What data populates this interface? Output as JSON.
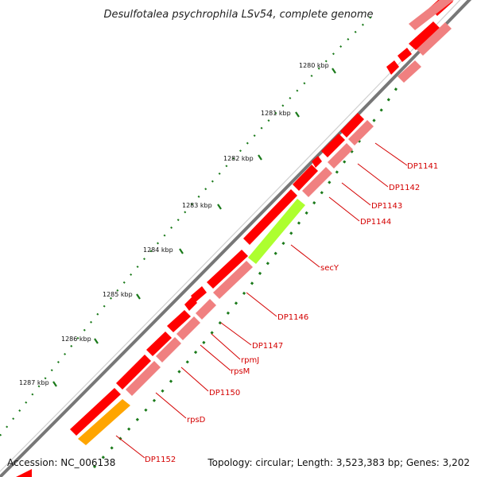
{
  "title": "Desulfotalea psychrophila LSv54, complete genome",
  "footer": {
    "accession": "Accession: NC_006138",
    "info": "Topology: circular; Length: 3,523,383 bp; Genes: 3,202"
  },
  "ticks": [
    {
      "label": "1280 kbp"
    },
    {
      "label": "1281 kbp"
    },
    {
      "label": "1282 kbp"
    },
    {
      "label": "1283 kbp"
    },
    {
      "label": "1284 kbp"
    },
    {
      "label": "1285 kbp"
    },
    {
      "label": "1286 kbp"
    },
    {
      "label": "1287 kbp"
    }
  ],
  "genes": [
    {
      "label": "DP1141"
    },
    {
      "label": "DP1142"
    },
    {
      "label": "DP1143"
    },
    {
      "label": "DP1144"
    },
    {
      "label": "secY"
    },
    {
      "label": "DP1146"
    },
    {
      "label": "DP1147"
    },
    {
      "label": "rpmJ"
    },
    {
      "label": "rpsM"
    },
    {
      "label": "DP1150"
    },
    {
      "label": "rpsD"
    },
    {
      "label": "DP1152"
    }
  ],
  "colors": {
    "cds": "#ff0000",
    "cds_light": "#f08080",
    "highlight_green": "#adff2f",
    "highlight_orange": "#ffa500",
    "backbone": "#777777",
    "ticks": "#1a7a1a",
    "label": "#d40000"
  }
}
